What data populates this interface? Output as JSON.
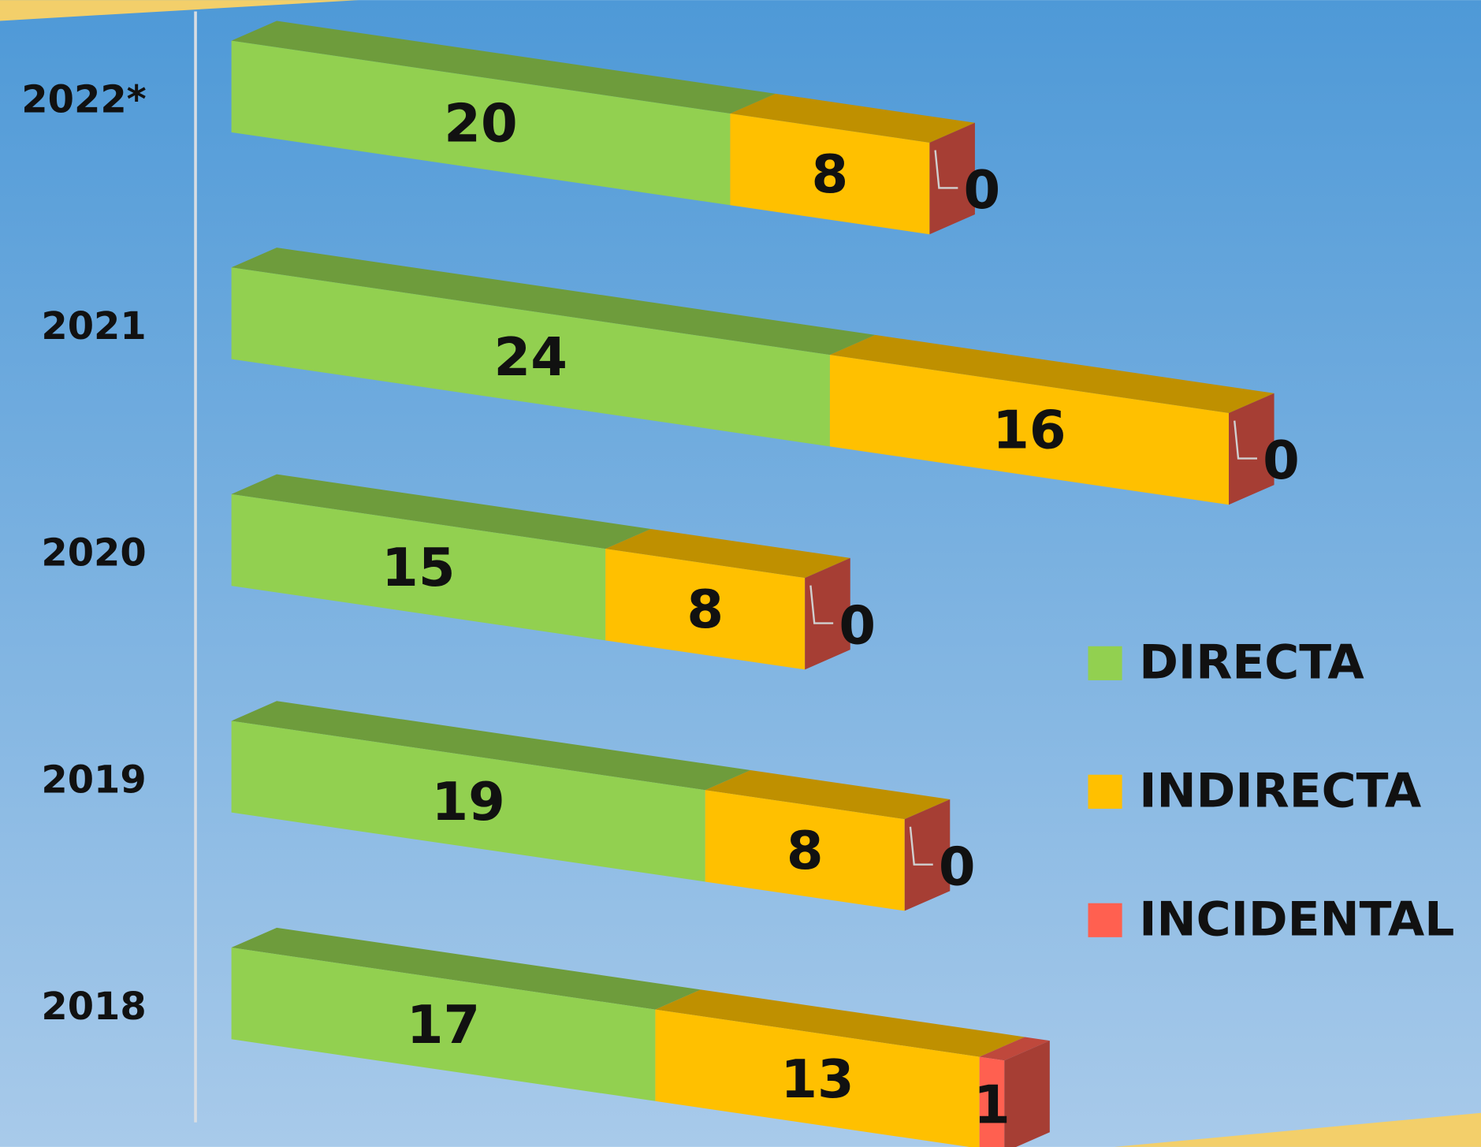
{
  "chart_data": {
    "type": "bar",
    "orientation": "horizontal",
    "stacked": true,
    "categories": [
      "2022*",
      "2021",
      "2020",
      "2019",
      "2018"
    ],
    "series": [
      {
        "name": "DIRECTA",
        "color": "#92d050",
        "values": [
          20,
          24,
          15,
          19,
          17
        ]
      },
      {
        "name": "INDIRECTA",
        "color": "#ffc000",
        "values": [
          8,
          16,
          8,
          8,
          13
        ]
      },
      {
        "name": "INCIDENTAL",
        "color": "#ff6050",
        "values": [
          0,
          0,
          0,
          0,
          1
        ]
      }
    ],
    "legend": "right"
  }
}
